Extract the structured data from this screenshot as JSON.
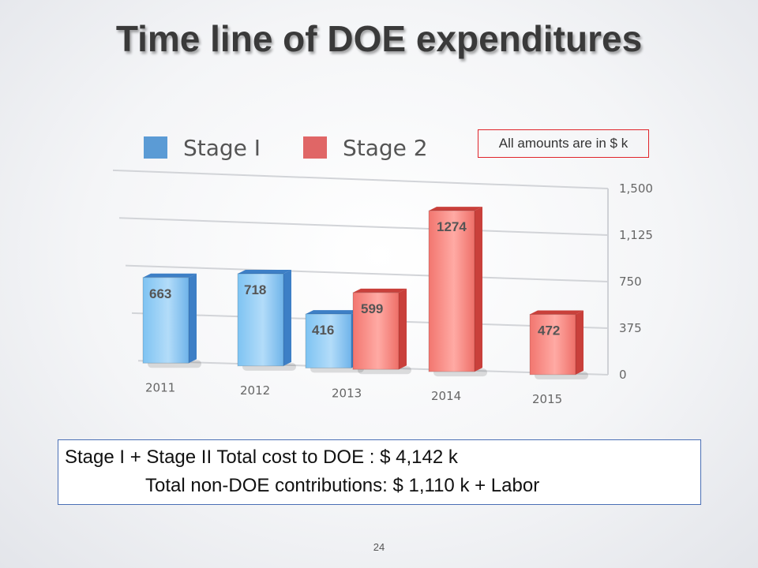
{
  "slide": {
    "title": "Time line of DOE expenditures",
    "note": "All amounts are in $ k",
    "summary_line1": "Stage I + Stage II Total cost to DOE : $ 4,142 k",
    "summary_line2": "Total non-DOE contributions:  $ 1,110 k +  Labor",
    "page_number": "24"
  },
  "chart_data": {
    "type": "bar",
    "categories": [
      "2011",
      "2012",
      "2013",
      "2014",
      "2015"
    ],
    "series": [
      {
        "name": "Stage I",
        "color": "#5b9bd5",
        "values": [
          663,
          718,
          416,
          null,
          null
        ]
      },
      {
        "name": "Stage 2",
        "color": "#e06666",
        "values": [
          null,
          null,
          599,
          1274,
          472
        ]
      }
    ],
    "y_ticks": [
      "0",
      "375",
      "750",
      "1,125",
      "1,500"
    ],
    "ylim": [
      0,
      1500
    ],
    "grid": true,
    "legend_position": "top-left",
    "axis_side": "right"
  }
}
